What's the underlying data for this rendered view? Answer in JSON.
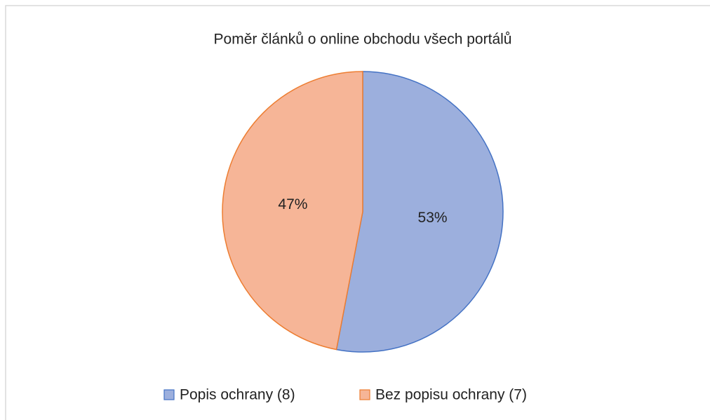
{
  "chart_data": {
    "type": "pie",
    "title": "Poměr článků o online obchodu všech portálů",
    "categories": [
      "Popis ochrany (8)",
      "Bez popisu ochrany (7)"
    ],
    "values": [
      53,
      47
    ],
    "value_labels": [
      "53%",
      "47%"
    ],
    "colors": [
      "#9cafdd",
      "#f6b597"
    ],
    "edgecolors": [
      "#4472c4",
      "#ed7d31"
    ],
    "legend": "bottom"
  }
}
